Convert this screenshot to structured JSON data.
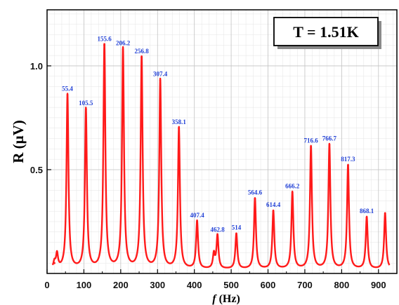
{
  "chart_data": {
    "type": "line",
    "xlabel_italic": "f",
    "xlabel_unit": "(Hz)",
    "ylabel": "R (μV)",
    "xlim": [
      0,
      950
    ],
    "ylim": [
      0,
      1.27
    ],
    "x_ticks": [
      "0",
      "100",
      "200",
      "300",
      "400",
      "500",
      "600",
      "700",
      "800",
      "900"
    ],
    "y_ticks": [
      "0.5",
      "1.0"
    ],
    "grid": true,
    "annotation": "T = 1.51K",
    "line_color": "#ff1a1a",
    "label_color": "#1f3fd6",
    "baseline": 0.02,
    "peaks": [
      {
        "f": 55.4,
        "R": 0.86,
        "label": "55.4"
      },
      {
        "f": 105.5,
        "R": 0.79,
        "label": "105.5"
      },
      {
        "f": 155.6,
        "R": 1.1,
        "label": "155.6"
      },
      {
        "f": 206.2,
        "R": 1.08,
        "label": "206.2"
      },
      {
        "f": 256.8,
        "R": 1.04,
        "label": "256.8"
      },
      {
        "f": 307.4,
        "R": 0.93,
        "label": "307.4"
      },
      {
        "f": 358.1,
        "R": 0.7,
        "label": "358.1"
      },
      {
        "f": 407.4,
        "R": 0.25,
        "label": "407.4"
      },
      {
        "f": 462.8,
        "R": 0.18,
        "label": "462.8"
      },
      {
        "f": 514,
        "R": 0.19,
        "label": "514"
      },
      {
        "f": 564.6,
        "R": 0.36,
        "label": "564.6"
      },
      {
        "f": 614.4,
        "R": 0.3,
        "label": "614.4"
      },
      {
        "f": 666.2,
        "R": 0.39,
        "label": "666.2"
      },
      {
        "f": 716.6,
        "R": 0.61,
        "label": "716.6"
      },
      {
        "f": 766.7,
        "R": 0.62,
        "label": "766.7"
      },
      {
        "f": 817.3,
        "R": 0.52,
        "label": "817.3"
      },
      {
        "f": 868.1,
        "R": 0.27,
        "label": "868.1"
      },
      {
        "f": 918,
        "R": 0.29,
        "label": ""
      },
      {
        "f": 20,
        "R": 0.05,
        "label": ""
      },
      {
        "f": 27,
        "R": 0.09,
        "label": ""
      },
      {
        "f": 453,
        "R": 0.09,
        "label": ""
      }
    ]
  }
}
